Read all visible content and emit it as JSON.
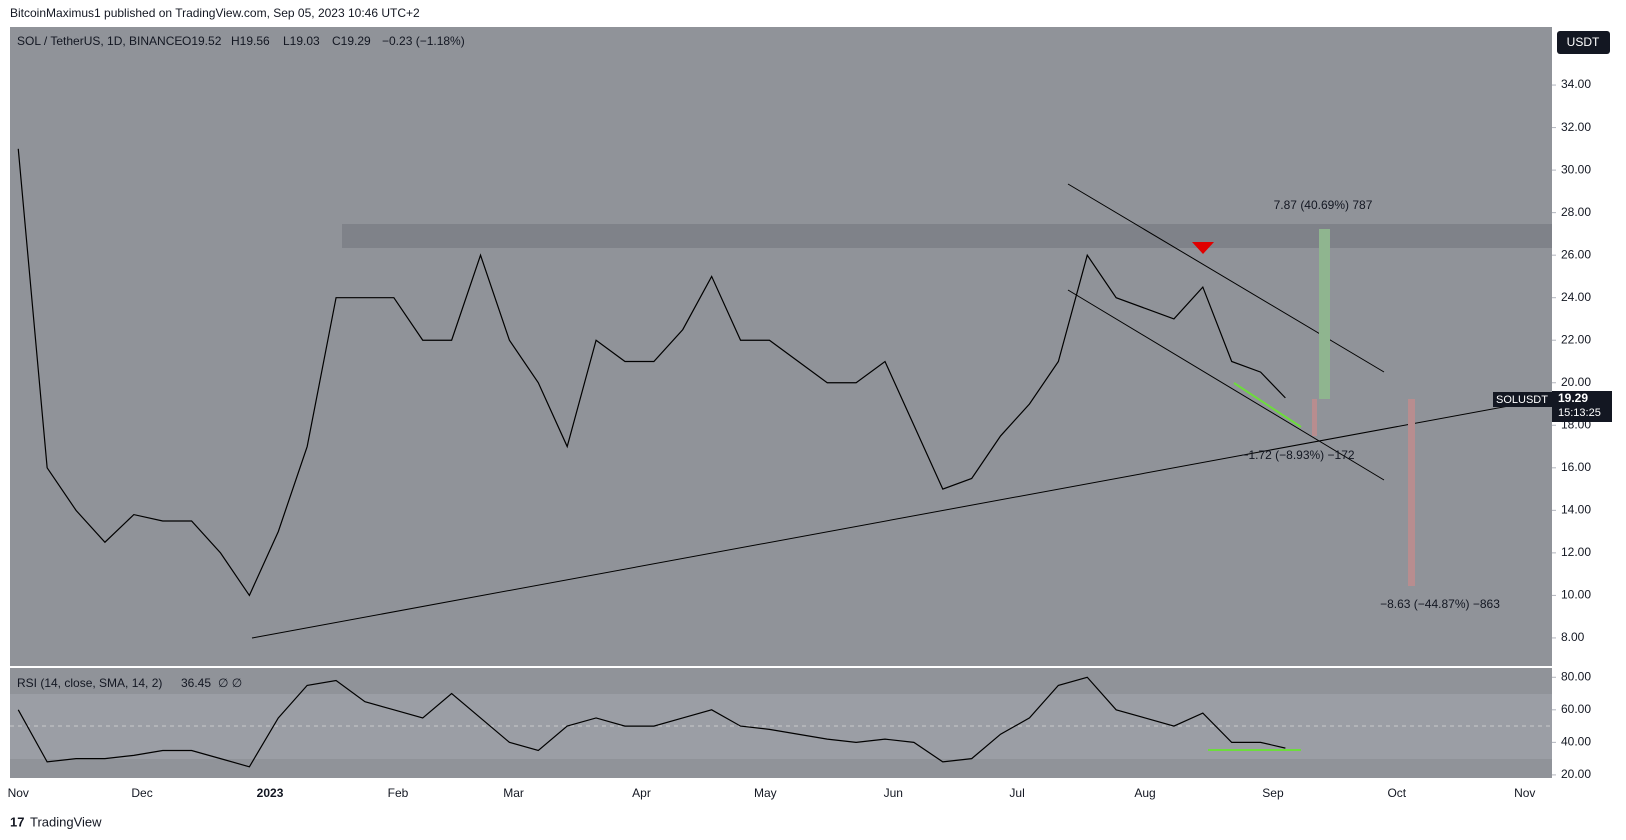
{
  "header": {
    "title": "BitcoinMaximus1 published on TradingView.com, Sep 05, 2023 10:46 UTC+2"
  },
  "legend": {
    "symbol": "SOL / TetherUS, 1D, BINANCE",
    "open": "O19.52",
    "high": "H19.56",
    "low": "L19.03",
    "close": "C19.29",
    "change": "−0.23 (−1.18%)"
  },
  "currency_button": "USDT",
  "price_tag": {
    "symbol": "SOLUSDT",
    "price": "19.29",
    "countdown": "15:13:25"
  },
  "annotations": [
    "7.87 (40.69%) 787",
    "−1.72 (−8.93%) −172",
    "−8.63 (−44.87%) −863"
  ],
  "rsi_legend": {
    "label": "RSI (14, close, SMA, 14, 2)",
    "value": "36.45",
    "extra": "∅ ∅"
  },
  "footer": "TradingView",
  "chart_data": [
    {
      "type": "line",
      "xlim": [
        -2,
        371.6
      ],
      "ylim": [
        6.68,
        36.73
      ],
      "xticks": [
        {
          "value": 0,
          "label": "Nov"
        },
        {
          "value": 30,
          "label": "Dec"
        },
        {
          "value": 61,
          "label": "2023"
        },
        {
          "value": 92,
          "label": "Feb"
        },
        {
          "value": 120,
          "label": "Mar"
        },
        {
          "value": 151,
          "label": "Apr"
        },
        {
          "value": 181,
          "label": "May"
        },
        {
          "value": 212,
          "label": "Jun"
        },
        {
          "value": 242,
          "label": "Jul"
        },
        {
          "value": 273,
          "label": "Aug"
        },
        {
          "value": 304,
          "label": "Sep"
        },
        {
          "value": 334,
          "label": "Oct"
        },
        {
          "value": 365,
          "label": "Nov"
        }
      ],
      "yticks": [
        {
          "value": 8,
          "label": "8.00"
        },
        {
          "value": 10,
          "label": "10.00"
        },
        {
          "value": 12,
          "label": "12.00"
        },
        {
          "value": 14,
          "label": "14.00"
        },
        {
          "value": 16,
          "label": "16.00"
        },
        {
          "value": 18,
          "label": "18.00"
        },
        {
          "value": 20,
          "label": "20.00"
        },
        {
          "value": 22,
          "label": "22.00"
        },
        {
          "value": 24,
          "label": "24.00"
        },
        {
          "value": 26,
          "label": "26.00"
        },
        {
          "value": 28,
          "label": "28.00"
        },
        {
          "value": 30,
          "label": "30.00"
        },
        {
          "value": 32,
          "label": "32.00"
        },
        {
          "value": 34,
          "label": "34.00"
        }
      ],
      "series": [
        {
          "name": "SOL / TetherUS",
          "color": "#000000",
          "x": [
            0,
            7,
            14,
            21,
            28,
            35,
            42,
            49,
            56,
            63,
            70,
            77,
            84,
            91,
            98,
            105,
            112,
            119,
            126,
            133,
            140,
            147,
            154,
            161,
            168,
            175,
            182,
            189,
            196,
            203,
            210,
            217,
            224,
            231,
            238,
            245,
            252,
            259,
            266,
            273,
            280,
            287,
            294,
            301,
            307
          ],
          "values": [
            31,
            16,
            14,
            12.5,
            13.8,
            13.5,
            13.5,
            12,
            10,
            13,
            17,
            24,
            24,
            24,
            22,
            22,
            26,
            22,
            20,
            17,
            22,
            21,
            21,
            22.5,
            25,
            22,
            22,
            21,
            20,
            20,
            21,
            18,
            15,
            15.5,
            17.5,
            19,
            21,
            26,
            24,
            23.5,
            23,
            24.5,
            21,
            20.5,
            19.29
          ]
        }
      ]
    },
    {
      "type": "line",
      "ylim": [
        18.1,
        85.7
      ],
      "yticks": [
        {
          "value": 20,
          "label": "20.00"
        },
        {
          "value": 40,
          "label": "40.00"
        },
        {
          "value": 60,
          "label": "60.00"
        },
        {
          "value": 80,
          "label": "80.00"
        }
      ],
      "series": [
        {
          "name": "RSI",
          "color": "#000000",
          "x": [
            0,
            7,
            14,
            21,
            28,
            35,
            42,
            49,
            56,
            63,
            70,
            77,
            84,
            91,
            98,
            105,
            112,
            119,
            126,
            133,
            140,
            147,
            154,
            161,
            168,
            175,
            182,
            189,
            196,
            203,
            210,
            217,
            224,
            231,
            238,
            245,
            252,
            259,
            266,
            273,
            280,
            287,
            294,
            301,
            307
          ],
          "values": [
            60,
            28,
            30,
            30,
            32,
            35,
            35,
            30,
            25,
            55,
            75,
            78,
            65,
            60,
            55,
            70,
            55,
            40,
            35,
            50,
            55,
            50,
            50,
            55,
            60,
            50,
            48,
            45,
            42,
            40,
            42,
            40,
            28,
            30,
            45,
            55,
            75,
            80,
            60,
            55,
            50,
            58,
            40,
            40,
            36.45
          ]
        }
      ]
    }
  ]
}
